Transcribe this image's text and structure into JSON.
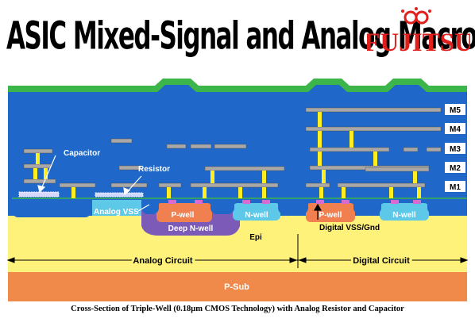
{
  "title": "ASIC Mixed-Signal and Analog Macros",
  "logo": {
    "text": "FUJITSU",
    "color": "#e0201c"
  },
  "metal_layers": [
    "M5",
    "M4",
    "M3",
    "M2",
    "M1"
  ],
  "labels": {
    "capacitor": "Capacitor",
    "resistor": "Resistor",
    "analog_vss": "Analog VSS",
    "pwell_left": "P-well",
    "nwell_left": "N-well",
    "deep_nwell": "Deep N-well",
    "pwell_right": "P-well",
    "nwell_right": "N-well",
    "epi": "Epi",
    "digital_vss": "Digital VSS/Gnd",
    "analog_circuit": "Analog Circuit",
    "digital_circuit": "Digital Circuit",
    "psub": "P-Sub"
  },
  "caption": "Cross-Section of Triple-Well (0.18μm CMOS Technology) with Analog Resistor and Capacitor",
  "colors": {
    "dielectric": "#1f67c8",
    "passivation": "#39b54a",
    "metal": "#a8a8a8",
    "via": "#ffee22",
    "epi": "#fff27a",
    "psub": "#f08a4b",
    "pwell": "#f08050",
    "nwell": "#5ec8e8",
    "deep_nwell": "#7b5bb7",
    "accent": "#e0201c"
  }
}
